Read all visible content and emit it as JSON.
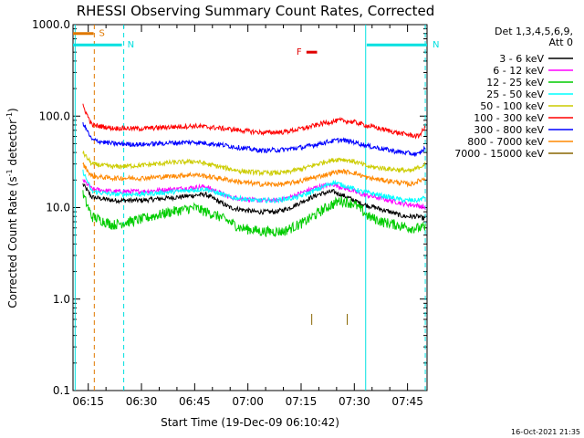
{
  "chart_data": {
    "type": "line",
    "title": "RHESSI Observing Summary Count Rates, Corrected",
    "xlabel": "Start Time (19-Dec-09 06:10:42)",
    "ylabel": {
      "pre": "Corrected Count Rate (s",
      "sup1": "-1",
      "mid": " detector",
      "sup2": "-1",
      "post": ")"
    },
    "x_ticks": [
      "06:15",
      "06:30",
      "06:45",
      "07:00",
      "07:15",
      "07:30",
      "07:45"
    ],
    "x_tick_minutes": [
      15,
      30,
      45,
      60,
      75,
      90,
      105
    ],
    "x_range_minutes": [
      10.7,
      110.5
    ],
    "y_scale": "log",
    "y_ticks": [
      "0.1",
      "1.0",
      "10.0",
      "100.0",
      "1000.0"
    ],
    "y_tick_values": [
      0.1,
      1,
      10,
      100,
      1000
    ],
    "ylim": [
      0.1,
      1000
    ],
    "legend": {
      "header": [
        "Det 1,3,4,5,6,9,",
        "Att 0"
      ],
      "position": "top-right"
    },
    "series": [
      {
        "name": "3 - 6 keV",
        "color": "#000000",
        "values": [
          [
            13.5,
            18
          ],
          [
            16,
            13
          ],
          [
            22,
            12
          ],
          [
            30,
            12
          ],
          [
            40,
            13
          ],
          [
            48,
            14
          ],
          [
            55,
            10
          ],
          [
            62,
            9
          ],
          [
            68,
            9
          ],
          [
            72,
            10
          ],
          [
            76,
            12
          ],
          [
            80,
            14
          ],
          [
            84,
            15
          ],
          [
            88,
            13
          ],
          [
            92,
            11
          ],
          [
            96,
            10
          ],
          [
            100,
            9
          ],
          [
            104,
            8
          ],
          [
            108,
            8
          ],
          [
            110,
            7.5
          ]
        ]
      },
      {
        "name": "6 - 12 keV",
        "color": "#ff00ff",
        "values": [
          [
            13.5,
            20
          ],
          [
            16,
            16
          ],
          [
            22,
            15
          ],
          [
            30,
            15
          ],
          [
            40,
            16
          ],
          [
            48,
            17
          ],
          [
            55,
            13
          ],
          [
            62,
            12
          ],
          [
            68,
            12
          ],
          [
            72,
            13
          ],
          [
            76,
            15
          ],
          [
            80,
            17
          ],
          [
            84,
            18
          ],
          [
            88,
            16
          ],
          [
            92,
            14
          ],
          [
            96,
            13
          ],
          [
            100,
            12
          ],
          [
            104,
            11
          ],
          [
            108,
            10.5
          ],
          [
            110,
            10
          ]
        ]
      },
      {
        "name": "12 - 25 keV",
        "color": "#00cc00",
        "values": [
          [
            13.5,
            14
          ],
          [
            16,
            8
          ],
          [
            22,
            6.5
          ],
          [
            30,
            7.5
          ],
          [
            38,
            9
          ],
          [
            45,
            10
          ],
          [
            52,
            8
          ],
          [
            58,
            6
          ],
          [
            64,
            5.5
          ],
          [
            70,
            5.5
          ],
          [
            76,
            7
          ],
          [
            82,
            10
          ],
          [
            86,
            12
          ],
          [
            90,
            11
          ],
          [
            94,
            8
          ],
          [
            98,
            7
          ],
          [
            102,
            6.5
          ],
          [
            106,
            6
          ],
          [
            110,
            6
          ]
        ]
      },
      {
        "name": "25 - 50 keV",
        "color": "#00ffff",
        "values": [
          [
            13.5,
            25
          ],
          [
            16,
            15
          ],
          [
            22,
            14
          ],
          [
            30,
            14
          ],
          [
            40,
            15
          ],
          [
            48,
            16
          ],
          [
            55,
            13
          ],
          [
            62,
            12
          ],
          [
            68,
            12
          ],
          [
            74,
            13
          ],
          [
            80,
            16
          ],
          [
            84,
            19
          ],
          [
            88,
            17
          ],
          [
            92,
            15
          ],
          [
            96,
            14
          ],
          [
            100,
            13
          ],
          [
            104,
            12
          ],
          [
            108,
            12
          ],
          [
            110,
            13
          ]
        ]
      },
      {
        "name": "50 - 100 keV",
        "color": "#cccc00",
        "values": [
          [
            13.5,
            40
          ],
          [
            16,
            30
          ],
          [
            22,
            28
          ],
          [
            30,
            29
          ],
          [
            38,
            31
          ],
          [
            45,
            32
          ],
          [
            52,
            28
          ],
          [
            58,
            25
          ],
          [
            64,
            24
          ],
          [
            70,
            24
          ],
          [
            76,
            27
          ],
          [
            82,
            32
          ],
          [
            86,
            34
          ],
          [
            90,
            32
          ],
          [
            94,
            28
          ],
          [
            98,
            27
          ],
          [
            102,
            26
          ],
          [
            106,
            25
          ],
          [
            110,
            30
          ]
        ]
      },
      {
        "name": "100 - 300 keV",
        "color": "#ff0000",
        "values": [
          [
            13.5,
            130
          ],
          [
            16,
            80
          ],
          [
            22,
            74
          ],
          [
            30,
            73
          ],
          [
            38,
            76
          ],
          [
            45,
            78
          ],
          [
            52,
            74
          ],
          [
            58,
            70
          ],
          [
            64,
            66
          ],
          [
            70,
            67
          ],
          [
            76,
            74
          ],
          [
            82,
            85
          ],
          [
            86,
            90
          ],
          [
            90,
            86
          ],
          [
            94,
            78
          ],
          [
            98,
            72
          ],
          [
            102,
            66
          ],
          [
            106,
            62
          ],
          [
            108,
            60
          ],
          [
            110,
            75
          ]
        ]
      },
      {
        "name": "300 - 800 keV",
        "color": "#0000ff",
        "values": [
          [
            13.5,
            85
          ],
          [
            16,
            55
          ],
          [
            22,
            50
          ],
          [
            30,
            49
          ],
          [
            38,
            51
          ],
          [
            45,
            52
          ],
          [
            52,
            49
          ],
          [
            58,
            45
          ],
          [
            64,
            42
          ],
          [
            70,
            43
          ],
          [
            76,
            46
          ],
          [
            82,
            52
          ],
          [
            86,
            55
          ],
          [
            90,
            52
          ],
          [
            94,
            47
          ],
          [
            98,
            44
          ],
          [
            102,
            41
          ],
          [
            106,
            39
          ],
          [
            108,
            38
          ],
          [
            110,
            45
          ]
        ]
      },
      {
        "name": "800 - 7000 keV",
        "color": "#ff8800",
        "values": [
          [
            13.5,
            30
          ],
          [
            16,
            22
          ],
          [
            22,
            21
          ],
          [
            30,
            21
          ],
          [
            38,
            22
          ],
          [
            45,
            23
          ],
          [
            52,
            21
          ],
          [
            58,
            19
          ],
          [
            64,
            18
          ],
          [
            70,
            18
          ],
          [
            76,
            20
          ],
          [
            82,
            23
          ],
          [
            86,
            25
          ],
          [
            90,
            24
          ],
          [
            94,
            21
          ],
          [
            98,
            20
          ],
          [
            102,
            19
          ],
          [
            106,
            18
          ],
          [
            110,
            21
          ]
        ]
      },
      {
        "name": "7000 - 15000 keV",
        "color": "#886600",
        "values": [
          [
            78,
            0.6
          ],
          [
            88,
            0.6
          ]
        ]
      }
    ],
    "bands": [
      {
        "label": "S",
        "color": "#e07800",
        "start": 10.7,
        "end": 16.5,
        "level": 800
      },
      {
        "label": "N",
        "color": "#00e0e0",
        "start": 10.7,
        "end": 24.5,
        "level": 600
      },
      {
        "label": "N",
        "color": "#00e0e0",
        "start": 93.5,
        "end": 110.5,
        "level": 600
      },
      {
        "label": "F",
        "color": "#e00000",
        "start": 76.5,
        "end": 79.5,
        "level": 500
      }
    ],
    "vlines": [
      {
        "minute": 11.3,
        "color": "#00e0e0",
        "style": "solid"
      },
      {
        "minute": 16.7,
        "color": "#e07800",
        "style": "dashed"
      },
      {
        "minute": 25.0,
        "color": "#00e0e0",
        "style": "dashed"
      },
      {
        "minute": 93.2,
        "color": "#00e0e0",
        "style": "solid"
      },
      {
        "minute": 110.0,
        "color": "#00e0e0",
        "style": "dashed"
      }
    ]
  },
  "footer": {
    "timestamp": "16-Oct-2021 21:35"
  }
}
